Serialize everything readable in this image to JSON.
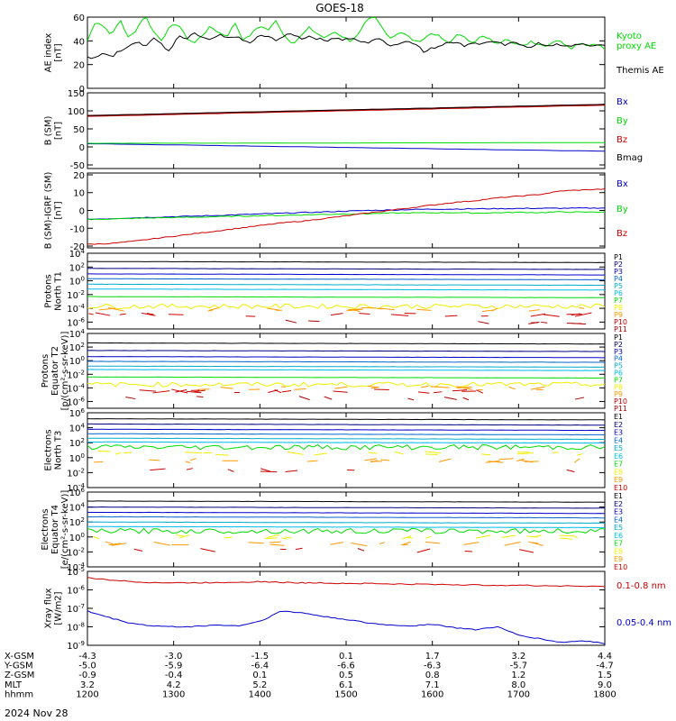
{
  "title": "GOES-18",
  "date_label": "2024 Nov 28",
  "colors": {
    "black": "#000000",
    "green": "#00dd00",
    "blue": "#0000cc",
    "red": "#cc0000",
    "navy": "#000080",
    "cyan": "#00bbee",
    "teal": "#00aacc",
    "yellow": "#eeee00",
    "orange": "#ff9900",
    "darkred": "#aa0000"
  },
  "footer": {
    "row_labels": [
      "X-GSM",
      "Y-GSM",
      "Z-GSM",
      "MLT",
      "hhmm"
    ],
    "columns": [
      [
        "-4.3",
        "-5.0",
        "-0.9",
        "3.2",
        "1200"
      ],
      [
        "-3.0",
        "-5.9",
        "-0.4",
        "4.2",
        "1300"
      ],
      [
        "-1.5",
        "-6.4",
        "0.1",
        "5.2",
        "1400"
      ],
      [
        "0.1",
        "-6.6",
        "0.5",
        "6.1",
        "1500"
      ],
      [
        "1.7",
        "-6.3",
        "0.8",
        "7.1",
        "1600"
      ],
      [
        "3.2",
        "-5.7",
        "1.2",
        "8.0",
        "1700"
      ],
      [
        "4.4",
        "-4.7",
        "1.5",
        "9.0",
        "1800"
      ]
    ]
  },
  "chart_data": [
    {
      "type": "line",
      "ylabel_lines": [
        "AE index",
        "[nT]"
      ],
      "ylim": [
        0,
        60
      ],
      "yticks": [
        "0",
        "20",
        "40",
        "60"
      ],
      "x_range": [
        "1200",
        "1800"
      ],
      "legend": [
        {
          "text": "Kyoto",
          "color": "#00dd00"
        },
        {
          "text": "proxy AE",
          "color": "#00dd00"
        },
        {
          "text": "Themis AE",
          "color": "#000000"
        }
      ],
      "series": [
        {
          "name": "Kyoto proxy AE",
          "color": "#00dd00",
          "values": [
            40,
            57,
            52,
            45,
            58,
            42,
            50,
            62,
            48,
            41,
            51,
            55,
            43,
            38,
            45,
            52,
            47,
            44,
            55,
            40,
            46,
            53,
            49,
            57,
            44,
            38,
            44,
            51,
            46,
            42,
            48,
            44,
            40,
            45,
            57,
            60,
            50,
            42,
            48,
            44,
            39,
            42,
            47,
            43,
            37,
            46,
            42,
            39,
            44,
            41,
            37,
            43,
            38,
            35,
            40,
            37,
            36,
            41,
            38,
            34,
            39,
            36,
            38,
            33
          ]
        },
        {
          "name": "Themis AE",
          "color": "#000000",
          "values": [
            26,
            25,
            30,
            27,
            32,
            36,
            40,
            35,
            42,
            38,
            30,
            44,
            41,
            46,
            43,
            40,
            45,
            42,
            44,
            40,
            38,
            45,
            43,
            41,
            44,
            46,
            42,
            44,
            42,
            40,
            43,
            41,
            42,
            40,
            38,
            42,
            40,
            36,
            38,
            40,
            38,
            30,
            34,
            36,
            40,
            38,
            36,
            39,
            37,
            40,
            38,
            36,
            39,
            37,
            34,
            38,
            36,
            37,
            35,
            36,
            38,
            35,
            37,
            36
          ]
        }
      ]
    },
    {
      "type": "line",
      "ylabel_lines": [
        "B (SM)",
        "[nT]"
      ],
      "ylim": [
        -60,
        150
      ],
      "yticks": [
        "-50",
        "0",
        "50",
        "100",
        "150"
      ],
      "legend": [
        {
          "text": "Bx",
          "color": "#0000cc"
        },
        {
          "text": "By",
          "color": "#00dd00"
        },
        {
          "text": "Bz",
          "color": "#cc0000"
        },
        {
          "text": "Bmag",
          "color": "#000000"
        }
      ],
      "series": [
        {
          "name": "Bx",
          "color": "#0000cc",
          "from": 9,
          "to": -12
        },
        {
          "name": "By",
          "color": "#00dd00",
          "from": 10,
          "to": 12
        },
        {
          "name": "Bz",
          "color": "#cc0000",
          "from": 86,
          "to": 117
        },
        {
          "name": "Bmag",
          "color": "#000000",
          "from": 87,
          "to": 118
        }
      ]
    },
    {
      "type": "line",
      "ylabel_lines": [
        "B (SM)-IGRF (SM)",
        "[nT]"
      ],
      "ylim": [
        -21,
        21
      ],
      "yticks": [
        "-20",
        "-10",
        "0",
        "10",
        "20"
      ],
      "legend": [
        {
          "text": "Bx",
          "color": "#0000cc"
        },
        {
          "text": "By",
          "color": "#00dd00"
        },
        {
          "text": "Bz",
          "color": "#cc0000"
        }
      ],
      "series": [
        {
          "name": "Bx",
          "color": "#0000cc",
          "values": [
            -5,
            -4.6,
            -4.2,
            -3.8,
            -3.5,
            -3.2,
            -2.8,
            -2.4,
            -2,
            -1.6,
            -1.2,
            -0.8,
            -0.4,
            0,
            0.2,
            0.5,
            0.7,
            0.8,
            0.9,
            1,
            1.1,
            1.2,
            1.2,
            1.3,
            1.4
          ]
        },
        {
          "name": "By",
          "color": "#00dd00",
          "values": [
            -5,
            -4.8,
            -4.5,
            -4.2,
            -4,
            -3.8,
            -3.5,
            -3.2,
            -3,
            -2.8,
            -2.5,
            -2.2,
            -2,
            -1.8,
            -1.5,
            -1.4,
            -1.3,
            -1.2,
            -1.5,
            -1.3,
            -1,
            -1.2,
            -0.8,
            -1,
            -0.8
          ]
        },
        {
          "name": "Bz",
          "color": "#cc0000",
          "values": [
            -19,
            -18.6,
            -17.5,
            -16,
            -14.5,
            -13,
            -11.5,
            -10,
            -8.5,
            -7,
            -6,
            -4.5,
            -3,
            -1.5,
            0,
            1.5,
            3,
            4.5,
            5.5,
            7,
            8,
            9,
            11,
            11.5,
            12
          ]
        }
      ]
    },
    {
      "type": "line",
      "log": true,
      "ylabel_lines": [
        "Protons",
        "North T1"
      ],
      "ylim_exp": [
        -7,
        4
      ],
      "ytick_exps": [
        -6,
        -4,
        -2,
        0,
        2,
        4
      ],
      "legend": [
        "P1",
        "P2",
        "P3",
        "P4",
        "P5",
        "P6",
        "P7",
        "P8",
        "P9",
        "P10",
        "P11"
      ],
      "series": [
        {
          "name": "P1",
          "color": "#000000",
          "level": 2.8
        },
        {
          "name": "P2",
          "color": "#000080",
          "level": 1.8
        },
        {
          "name": "P3",
          "color": "#0000cc",
          "level": 1.0
        },
        {
          "name": "P4",
          "color": "#0066cc",
          "level": 0.3
        },
        {
          "name": "P5",
          "color": "#00aacc",
          "level": -0.5
        },
        {
          "name": "P6",
          "color": "#00bbee",
          "level": -1.2
        },
        {
          "name": "P7",
          "color": "#00dd00",
          "level": -2.3
        },
        {
          "name": "P8",
          "color": "#eeee00",
          "level": -3.7
        },
        {
          "name": "P9",
          "color": "#ff9900",
          "level": -4.2
        },
        {
          "name": "P10",
          "color": "#cc0000",
          "level": -4.9
        },
        {
          "name": "P11",
          "color": "#aa0000",
          "level": -6.0
        }
      ]
    },
    {
      "type": "line",
      "log": true,
      "ylabel_lines": [
        "Protons",
        "Equator T2",
        "[p/(cm²-s-sr-keV)]"
      ],
      "ylim_exp": [
        -7,
        4
      ],
      "ytick_exps": [
        -6,
        -4,
        -2,
        0,
        2,
        4
      ],
      "legend": [
        "P1",
        "P2",
        "P3",
        "P4",
        "P5",
        "P6",
        "P7",
        "P8",
        "P9",
        "P10",
        "P11"
      ],
      "series": [
        {
          "name": "P1",
          "color": "#000000",
          "level": 2.6
        },
        {
          "name": "P2",
          "color": "#000080",
          "level": 1.5
        },
        {
          "name": "P3",
          "color": "#0000cc",
          "level": 0.6
        },
        {
          "name": "P4",
          "color": "#0066cc",
          "level": -0.1
        },
        {
          "name": "P5",
          "color": "#00aacc",
          "level": -0.8
        },
        {
          "name": "P6",
          "color": "#00bbee",
          "level": -1.3
        },
        {
          "name": "P7",
          "color": "#00dd00",
          "level": -2.4
        },
        {
          "name": "P8",
          "color": "#eeee00",
          "level": -3.5
        },
        {
          "name": "P9",
          "color": "#ff9900",
          "level": -4.0
        },
        {
          "name": "P10",
          "color": "#cc0000",
          "level": -4.5
        },
        {
          "name": "P11",
          "color": "#aa0000",
          "level": -5.5
        }
      ]
    },
    {
      "type": "line",
      "log": true,
      "ylabel_lines": [
        "Electrons",
        "North T3"
      ],
      "ylim_exp": [
        -4,
        6
      ],
      "ytick_exps": [
        -4,
        -2,
        0,
        2,
        4,
        6
      ],
      "legend": [
        "E1",
        "E2",
        "E3",
        "E4",
        "E5",
        "E6",
        "E7",
        "E8",
        "E9",
        "E10"
      ],
      "series": [
        {
          "name": "E1",
          "color": "#000000",
          "level": 5.2
        },
        {
          "name": "E2",
          "color": "#000080",
          "level": 4.5
        },
        {
          "name": "E3",
          "color": "#0000cc",
          "level": 3.8
        },
        {
          "name": "E4",
          "color": "#0066cc",
          "level": 3.2
        },
        {
          "name": "E5",
          "color": "#00aacc",
          "level": 2.6
        },
        {
          "name": "E6",
          "color": "#00bbee",
          "level": 2.1
        },
        {
          "name": "E7",
          "color": "#00dd00",
          "level": 1.4
        },
        {
          "name": "E8",
          "color": "#eeee00",
          "level": 0.6
        },
        {
          "name": "E9",
          "color": "#ff9900",
          "level": -0.4
        },
        {
          "name": "E10",
          "color": "#cc0000",
          "level": -1.7
        }
      ]
    },
    {
      "type": "line",
      "log": true,
      "ylabel_lines": [
        "Electrons",
        "Equator T4",
        "[e/(cm²-s-sr-keV)]"
      ],
      "ylim_exp": [
        -4,
        6
      ],
      "ytick_exps": [
        -4,
        -2,
        0,
        2,
        4,
        6
      ],
      "legend": [
        "E1",
        "E2",
        "E3",
        "E4",
        "E5",
        "E6",
        "E7",
        "E8",
        "E9",
        "E10"
      ],
      "series": [
        {
          "name": "E1",
          "color": "#000000",
          "level": 4.8
        },
        {
          "name": "E2",
          "color": "#000080",
          "level": 4.0
        },
        {
          "name": "E3",
          "color": "#0000cc",
          "level": 3.3
        },
        {
          "name": "E4",
          "color": "#0066cc",
          "level": 2.7
        },
        {
          "name": "E5",
          "color": "#00aacc",
          "level": 2.0
        },
        {
          "name": "E6",
          "color": "#00bbee",
          "level": 1.4
        },
        {
          "name": "E7",
          "color": "#00dd00",
          "level": 0.8
        },
        {
          "name": "E8",
          "color": "#eeee00",
          "level": 0.0
        },
        {
          "name": "E9",
          "color": "#ff9900",
          "level": -0.9
        },
        {
          "name": "E10",
          "color": "#cc0000",
          "level": -1.8
        }
      ]
    },
    {
      "type": "line",
      "log": true,
      "ylabel_lines": [
        "Xray flux",
        "[W/m2]"
      ],
      "ylim_exp": [
        -9,
        -5
      ],
      "ytick_exps": [
        -9,
        -8,
        -7,
        -6,
        -5
      ],
      "legend": [
        {
          "text": "0.1-0.8 nm",
          "color": "#cc0000"
        },
        {
          "text": "0.05-0.4 nm",
          "color": "#0000cc"
        }
      ],
      "series": [
        {
          "name": "0.1-0.8 nm",
          "color": "#cc0000",
          "values": [
            -5.35,
            -5.45,
            -5.55,
            -5.6,
            -5.62,
            -5.62,
            -5.6,
            -5.58,
            -5.55,
            -5.6,
            -5.62,
            -5.62,
            -5.65,
            -5.65,
            -5.68,
            -5.7,
            -5.7,
            -5.72,
            -5.74,
            -5.75,
            -5.75,
            -5.78,
            -5.78,
            -5.8,
            -5.82
          ]
        },
        {
          "name": "0.05-0.4 nm",
          "color": "#0000cc",
          "values": [
            -7.15,
            -7.5,
            -7.8,
            -7.95,
            -8.0,
            -7.98,
            -7.9,
            -7.95,
            -7.7,
            -7.15,
            -7.25,
            -7.45,
            -7.6,
            -7.8,
            -7.9,
            -7.95,
            -7.85,
            -8.05,
            -8.15,
            -8.0,
            -8.45,
            -8.65,
            -8.85,
            -8.75,
            -8.9
          ]
        }
      ]
    }
  ]
}
